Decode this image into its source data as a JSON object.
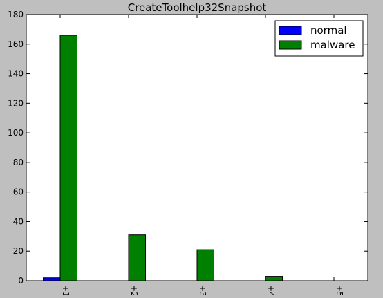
{
  "chart_data": {
    "type": "bar",
    "title": "CreateToolhelp32Snapshot",
    "xlabel": "",
    "ylabel": "",
    "ylim": [
      0,
      180
    ],
    "yticks": [
      0,
      20,
      40,
      60,
      80,
      100,
      120,
      140,
      160,
      180
    ],
    "categories": [
      "1",
      "2",
      "3",
      "4",
      "5"
    ],
    "tick_labels": [
      "+1",
      "+2",
      "+3",
      "+4",
      "+5"
    ],
    "series": [
      {
        "name": "normal",
        "color": "#0000ff",
        "values": [
          2,
          0,
          0,
          0,
          0
        ]
      },
      {
        "name": "malware",
        "color": "#008000",
        "values": [
          166,
          31,
          21,
          3,
          0
        ]
      }
    ],
    "legend_position": "top-right",
    "grid": false,
    "background": "#bfbfbf",
    "plot_background": "#ffffff"
  }
}
